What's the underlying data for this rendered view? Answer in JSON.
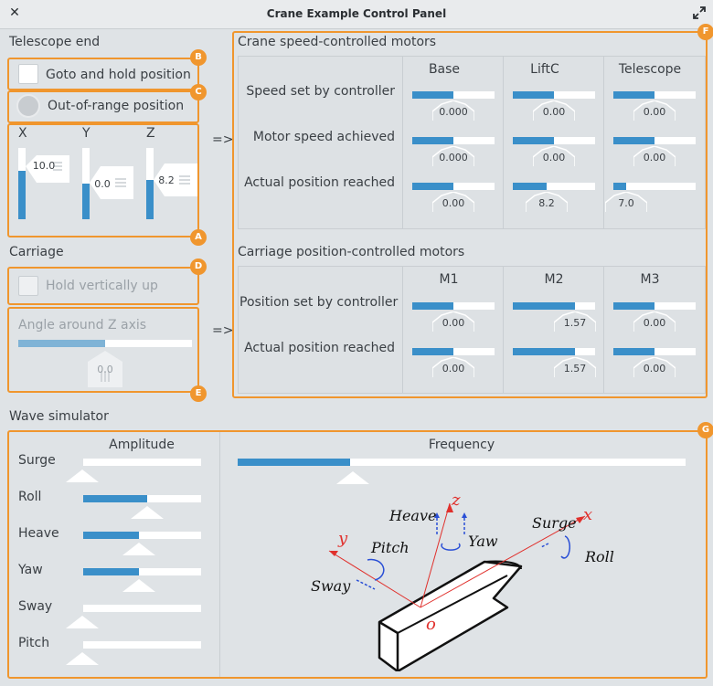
{
  "window": {
    "title": "Crane Example Control Panel"
  },
  "telescope_end": {
    "title": "Telescope end",
    "goto_label": "Goto and hold position",
    "out_of_range_label": "Out-of-range position",
    "axes": [
      {
        "label": "X",
        "value": "10.0",
        "level": 0.68
      },
      {
        "label": "Y",
        "value": "0.0",
        "level": 0.5
      },
      {
        "label": "Z",
        "value": "8.2",
        "level": 0.55
      }
    ]
  },
  "carriage": {
    "title": "Carriage",
    "hold_label": "Hold vertically up",
    "angle_label": "Angle around Z axis",
    "angle_value": "0.0",
    "angle_level": 0.5
  },
  "arrows": {
    "top": "=>",
    "bottom": "=>"
  },
  "crane_motors": {
    "title": "Crane speed-controlled motors",
    "columns": [
      "Base",
      "LiftC",
      "Telescope"
    ],
    "rows": [
      {
        "label": "Speed set by controller",
        "values": [
          "0.000",
          "0.00",
          "0.00"
        ],
        "levels": [
          0.5,
          0.5,
          0.5
        ]
      },
      {
        "label": "Motor speed achieved",
        "values": [
          "0.000",
          "0.00",
          "0.00"
        ],
        "levels": [
          0.5,
          0.5,
          0.5
        ]
      },
      {
        "label": "Actual position reached",
        "values": [
          "0.00",
          "8.2",
          "7.0"
        ],
        "levels": [
          0.5,
          0.41,
          0.15
        ]
      }
    ]
  },
  "carriage_motors": {
    "title": "Carriage position-controlled motors",
    "columns": [
      "M1",
      "M2",
      "M3"
    ],
    "rows": [
      {
        "label": "Position set by controller",
        "values": [
          "0.00",
          "1.57",
          "0.00"
        ],
        "levels": [
          0.5,
          0.75,
          0.5
        ]
      },
      {
        "label": "Actual position reached",
        "values": [
          "0.00",
          "1.57",
          "0.00"
        ],
        "levels": [
          0.5,
          0.75,
          0.5
        ]
      }
    ]
  },
  "wave": {
    "title": "Wave simulator",
    "amplitude_header": "Amplitude",
    "frequency_header": "Frequency",
    "frequency_level": 0.25,
    "rows": [
      {
        "label": "Surge",
        "level": 0.0
      },
      {
        "label": "Roll",
        "level": 0.54
      },
      {
        "label": "Heave",
        "level": 0.47
      },
      {
        "label": "Yaw",
        "level": 0.47
      },
      {
        "label": "Sway",
        "level": 0.0
      },
      {
        "label": "Pitch",
        "level": 0.0
      }
    ],
    "diagram": {
      "heave": "Heave",
      "yaw": "Yaw",
      "surge": "Surge",
      "roll": "Roll",
      "pitch": "Pitch",
      "sway": "Sway",
      "z": "z",
      "y": "y",
      "x": "x",
      "o": "o"
    }
  },
  "badges": [
    "A",
    "B",
    "C",
    "D",
    "E",
    "F",
    "G"
  ],
  "colors": {
    "accent": "#f0962e",
    "fill": "#3a8fc9"
  }
}
